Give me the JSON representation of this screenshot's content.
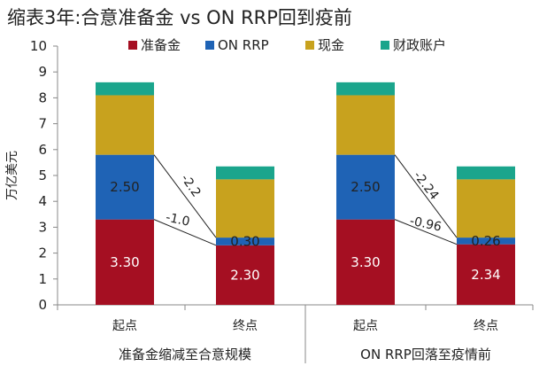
{
  "title": "缩表3年:合意准备金 vs ON RRP回到疫前",
  "chart_data": {
    "type": "bar",
    "stacked": true,
    "ylabel": "万亿美元",
    "ylim": [
      0,
      10
    ],
    "yticks": [
      0,
      1,
      2,
      3,
      4,
      5,
      6,
      7,
      8,
      9,
      10
    ],
    "categories": [
      "起点",
      "终点",
      "起点",
      "终点"
    ],
    "groups": [
      "准备金缩减至合意规模",
      "ON RRP回落至疫情前"
    ],
    "series": [
      {
        "name": "准备金",
        "color": "#A50F22",
        "values": [
          3.3,
          2.3,
          3.3,
          2.34
        ],
        "labels": [
          "3.30",
          "2.30",
          "3.30",
          "2.34"
        ]
      },
      {
        "name": "ON RRP",
        "color": "#1F63B5",
        "values": [
          2.5,
          0.3,
          2.5,
          0.26
        ],
        "labels": [
          "2.50",
          "0.30",
          "2.50",
          "0.26"
        ]
      },
      {
        "name": "现金",
        "color": "#C8A21E",
        "values": [
          2.3,
          2.25,
          2.3,
          2.25
        ],
        "labels": [
          "",
          "",
          "",
          ""
        ]
      },
      {
        "name": "财政账户",
        "color": "#1BA58C",
        "values": [
          0.5,
          0.5,
          0.5,
          0.5
        ],
        "labels": [
          "",
          "",
          "",
          ""
        ]
      }
    ],
    "annotations": [
      {
        "text": "-2.2",
        "group": 0
      },
      {
        "text": "-1.0",
        "group": 0
      },
      {
        "text": "-2.24",
        "group": 1
      },
      {
        "text": "-0.96",
        "group": 1
      }
    ],
    "grid": false,
    "legend_position": "top"
  }
}
